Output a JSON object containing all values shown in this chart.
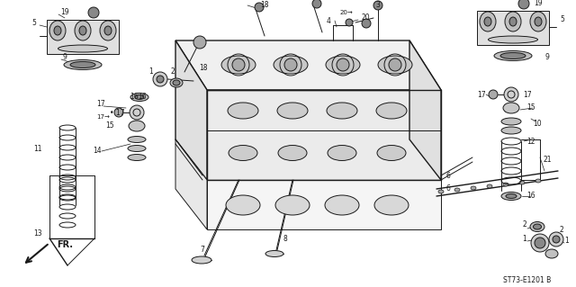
{
  "bg_color": "#ffffff",
  "dc": "#1a1a1a",
  "footer": "ST73-E1201 B",
  "figsize": [
    6.4,
    3.19
  ],
  "dpi": 100
}
